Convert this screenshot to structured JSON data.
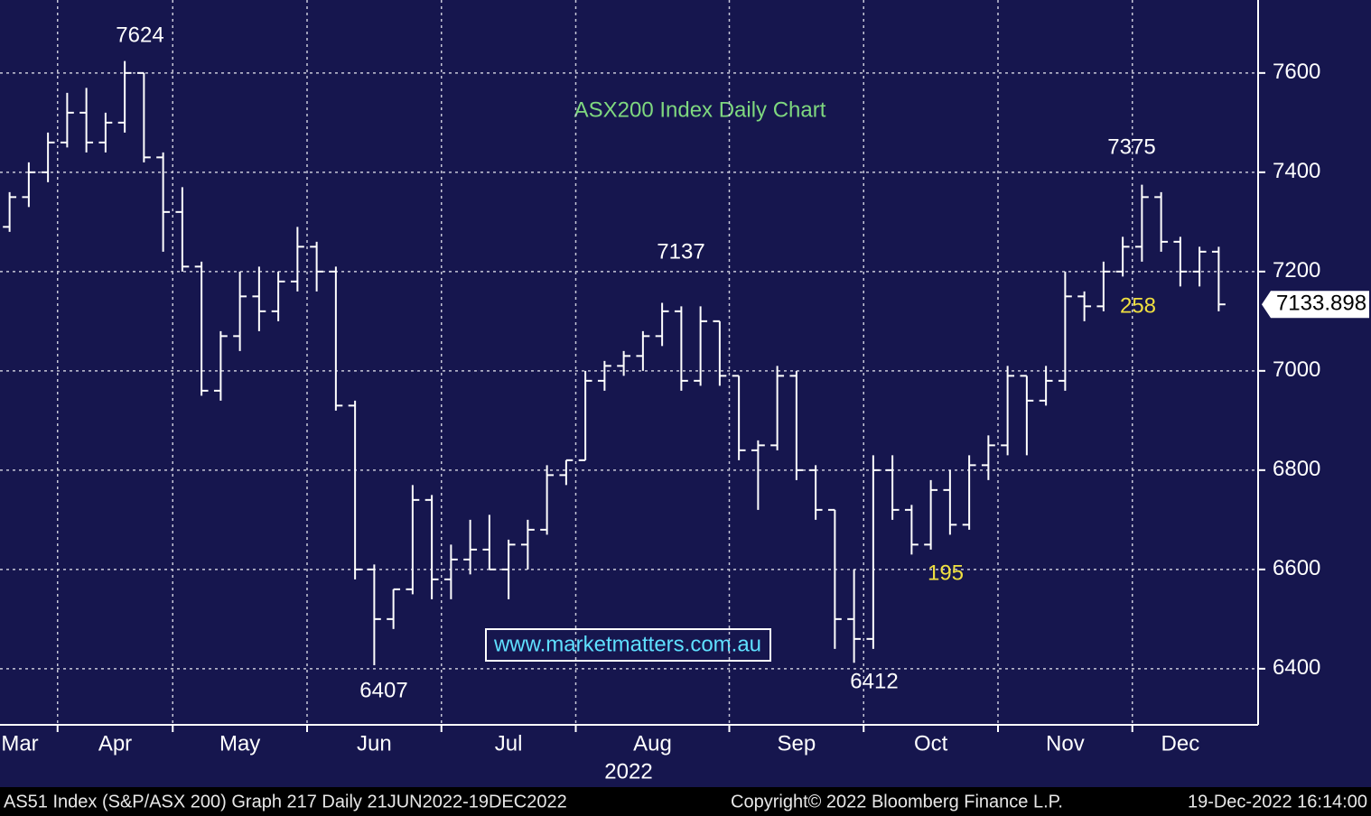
{
  "chart_data": {
    "type": "ohlc",
    "title": "ASX200 Index Daily Chart",
    "watermark": "www.marketmatters.com.au",
    "xlabel": "2022",
    "color": "#ffffff",
    "title_color": "#7fd87f",
    "grid": true,
    "ylim": [
      6287,
      7747
    ],
    "yticks": [
      6400,
      6600,
      6800,
      7000,
      7200,
      7400,
      7600
    ],
    "months": [
      {
        "label": "Mar",
        "bars": [
          [
            7290,
            7360,
            7280,
            7350
          ],
          [
            7350,
            7420,
            7330,
            7400
          ],
          [
            7400,
            7480,
            7380,
            7460
          ]
        ]
      },
      {
        "label": "Apr",
        "bars": [
          [
            7460,
            7560,
            7450,
            7520
          ],
          [
            7520,
            7570,
            7440,
            7460
          ],
          [
            7460,
            7520,
            7440,
            7500
          ],
          [
            7500,
            7624,
            7480,
            7600
          ],
          [
            7600,
            7600,
            7420,
            7430
          ],
          [
            7430,
            7440,
            7240,
            7320
          ]
        ]
      },
      {
        "label": "May",
        "bars": [
          [
            7320,
            7370,
            7200,
            7210
          ],
          [
            7210,
            7220,
            6950,
            6960
          ],
          [
            6960,
            7080,
            6940,
            7070
          ],
          [
            7070,
            7200,
            7040,
            7150
          ],
          [
            7150,
            7210,
            7080,
            7120
          ],
          [
            7120,
            7200,
            7100,
            7180
          ],
          [
            7180,
            7290,
            7160,
            7250
          ]
        ]
      },
      {
        "label": "Jun",
        "bars": [
          [
            7250,
            7260,
            7160,
            7200
          ],
          [
            7200,
            7210,
            6920,
            6930
          ],
          [
            6930,
            6940,
            6580,
            6600
          ],
          [
            6600,
            6610,
            6407,
            6500
          ],
          [
            6500,
            6560,
            6480,
            6560
          ],
          [
            6560,
            6770,
            6550,
            6740
          ],
          [
            6740,
            6750,
            6540,
            6580
          ]
        ]
      },
      {
        "label": "Jul",
        "bars": [
          [
            6580,
            6650,
            6540,
            6620
          ],
          [
            6620,
            6700,
            6590,
            6640
          ],
          [
            6640,
            6710,
            6600,
            6600
          ],
          [
            6600,
            6660,
            6540,
            6650
          ],
          [
            6650,
            6700,
            6600,
            6680
          ],
          [
            6680,
            6810,
            6670,
            6790
          ],
          [
            6790,
            6820,
            6770,
            6820
          ]
        ]
      },
      {
        "label": "Aug",
        "bars": [
          [
            6820,
            7000,
            6820,
            6980
          ],
          [
            6980,
            7020,
            6960,
            7010
          ],
          [
            7010,
            7040,
            6990,
            7030
          ],
          [
            7030,
            7080,
            7000,
            7070
          ],
          [
            7070,
            7137,
            7050,
            7120
          ],
          [
            7120,
            7130,
            6960,
            6980
          ],
          [
            6980,
            7130,
            6970,
            7100
          ],
          [
            7100,
            7100,
            6970,
            6990
          ]
        ]
      },
      {
        "label": "Sep",
        "bars": [
          [
            6990,
            6990,
            6820,
            6840
          ],
          [
            6840,
            6860,
            6720,
            6850
          ],
          [
            6850,
            7010,
            6840,
            6990
          ],
          [
            6990,
            7000,
            6780,
            6800
          ],
          [
            6800,
            6810,
            6700,
            6720
          ],
          [
            6720,
            6720,
            6440,
            6500
          ],
          [
            6500,
            6600,
            6412,
            6460
          ]
        ]
      },
      {
        "label": "Oct",
        "bars": [
          [
            6460,
            6830,
            6440,
            6800
          ],
          [
            6800,
            6830,
            6700,
            6720
          ],
          [
            6720,
            6730,
            6630,
            6650
          ],
          [
            6650,
            6780,
            6640,
            6760
          ],
          [
            6760,
            6800,
            6670,
            6690
          ],
          [
            6690,
            6830,
            6680,
            6810
          ],
          [
            6810,
            6870,
            6780,
            6850
          ]
        ]
      },
      {
        "label": "Nov",
        "bars": [
          [
            6850,
            7010,
            6830,
            6990
          ],
          [
            6990,
            6990,
            6830,
            6940
          ],
          [
            6940,
            7010,
            6930,
            6980
          ],
          [
            6980,
            7200,
            6960,
            7150
          ],
          [
            7150,
            7160,
            7100,
            7130
          ],
          [
            7130,
            7220,
            7120,
            7200
          ],
          [
            7200,
            7270,
            7190,
            7250
          ]
        ]
      },
      {
        "label": "Dec",
        "bars": [
          [
            7250,
            7375,
            7220,
            7350
          ],
          [
            7350,
            7360,
            7240,
            7260
          ],
          [
            7260,
            7270,
            7170,
            7200
          ],
          [
            7200,
            7250,
            7170,
            7240
          ],
          [
            7240,
            7250,
            7120,
            7133.898
          ]
        ]
      }
    ],
    "annotations": [
      {
        "text": "7624",
        "color": "#ffffff"
      },
      {
        "text": "6407",
        "color": "#ffffff"
      },
      {
        "text": "7137",
        "color": "#ffffff"
      },
      {
        "text": "6412",
        "color": "#ffffff"
      },
      {
        "text": "7375",
        "color": "#ffffff"
      },
      {
        "text": "195",
        "color": "#f0e040"
      },
      {
        "text": "258",
        "color": "#f0e040"
      }
    ]
  },
  "footer": {
    "left": "AS51 Index (S&P/ASX 200) Graph 217  Daily 21JUN2022-19DEC2022",
    "center": "Copyright© 2022 Bloomberg Finance L.P.",
    "right": "19-Dec-2022 16:14:00"
  }
}
